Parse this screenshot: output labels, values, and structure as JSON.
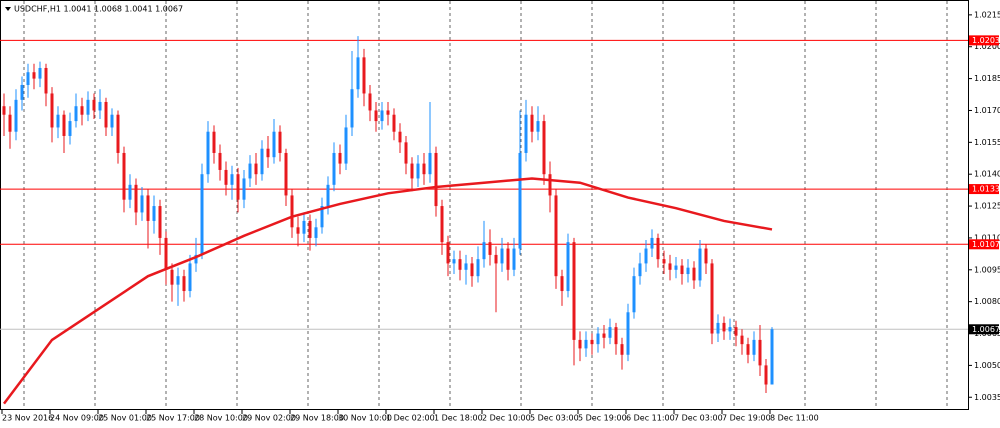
{
  "chart_data": {
    "type": "candlestick",
    "title": "USDCHF,H1  1.0041 1.0068 1.0041 1.0067",
    "up_color": "#1e90ff",
    "down_color": "#e8191e",
    "ylim": [
      1.0029,
      1.0222
    ],
    "yticks": [
      1.0035,
      {
        "value": 1.005,
        "label": "1.0050"
      },
      1.0065,
      {
        "value": 1.008,
        "label": "1.0080"
      },
      1.0095,
      {
        "value": 1.011,
        "label": "1.0110"
      },
      1.0125,
      {
        "value": 1.014,
        "label": "1.0140"
      },
      1.0155,
      {
        "value": 1.017,
        "label": "1.0170"
      },
      1.0185,
      {
        "value": 1.02,
        "label": "1.0200"
      },
      1.0215
    ],
    "categories": [
      "23 Nov 2016",
      null,
      null,
      null,
      null,
      null,
      null,
      null,
      "24 Nov 09:00",
      null,
      null,
      null,
      null,
      null,
      null,
      null,
      "25 Nov 01:00",
      null,
      null,
      null,
      null,
      null,
      null,
      null,
      "25 Nov 17:00",
      null,
      null,
      null,
      null,
      null,
      null,
      null,
      "28 Nov 10:00",
      null,
      null,
      null,
      null,
      null,
      null,
      null,
      "29 Nov 02:00",
      null,
      null,
      null,
      null,
      null,
      null,
      null,
      "29 Nov 18:00",
      null,
      null,
      null,
      null,
      null,
      null,
      null,
      "30 Nov 10:00",
      null,
      null,
      null,
      null,
      null,
      null,
      null,
      "1 Dec 02:00",
      null,
      null,
      null,
      null,
      null,
      null,
      null,
      "1 Dec 18:00",
      null,
      null,
      null,
      null,
      null,
      null,
      null,
      "2 Dec 10:00",
      null,
      null,
      null,
      null,
      null,
      null,
      null,
      "5 Dec 03:00",
      null,
      null,
      null,
      null,
      null,
      null,
      null,
      "5 Dec 19:00",
      null,
      null,
      null,
      null,
      null,
      null,
      null,
      "6 Dec 11:00",
      null,
      null,
      null,
      null,
      null,
      null,
      null,
      "7 Dec 03:00",
      null,
      null,
      null,
      null,
      null,
      null,
      null,
      "7 Dec 19:00",
      null,
      null,
      null,
      null,
      null,
      null,
      null,
      "8 Dec 11:00"
    ],
    "ohlc": [
      [
        1.0172,
        1.0178,
        1.0158,
        1.0168
      ],
      [
        1.0168,
        1.0172,
        1.0152,
        1.016
      ],
      [
        1.016,
        1.018,
        1.0156,
        1.0175
      ],
      [
        1.0175,
        1.0186,
        1.017,
        1.0182
      ],
      [
        1.0182,
        1.0192,
        1.0176,
        1.0188
      ],
      [
        1.0188,
        1.0192,
        1.018,
        1.0185
      ],
      [
        1.0185,
        1.0193,
        1.0181,
        1.019
      ],
      [
        1.019,
        1.0192,
        1.0172,
        1.0178
      ],
      [
        1.0178,
        1.0181,
        1.0155,
        1.0162
      ],
      [
        1.0162,
        1.0172,
        1.0157,
        1.0168
      ],
      [
        1.0168,
        1.017,
        1.015,
        1.0158
      ],
      [
        1.0158,
        1.0169,
        1.0154,
        1.0165
      ],
      [
        1.0165,
        1.0178,
        1.0162,
        1.0172
      ],
      [
        1.0172,
        1.0176,
        1.0163,
        1.0168
      ],
      [
        1.0168,
        1.0179,
        1.0165,
        1.0175
      ],
      [
        1.0175,
        1.0178,
        1.0166,
        1.017
      ],
      [
        1.017,
        1.018,
        1.0166,
        1.0174
      ],
      [
        1.0174,
        1.0176,
        1.0158,
        1.0162
      ],
      [
        1.0162,
        1.0171,
        1.0158,
        1.0168
      ],
      [
        1.0168,
        1.017,
        1.0145,
        1.015
      ],
      [
        1.015,
        1.0153,
        1.0122,
        1.0128
      ],
      [
        1.0128,
        1.014,
        1.0124,
        1.0135
      ],
      [
        1.0135,
        1.0138,
        1.0116,
        1.0122
      ],
      [
        1.0122,
        1.0134,
        1.0118,
        1.013
      ],
      [
        1.013,
        1.0133,
        1.0105,
        1.0118
      ],
      [
        1.0118,
        1.013,
        1.0112,
        1.0125
      ],
      [
        1.0125,
        1.0128,
        1.0102,
        1.011
      ],
      [
        1.011,
        1.0113,
        1.0088,
        1.0095
      ],
      [
        1.0095,
        1.0098,
        1.008,
        1.0088
      ],
      [
        1.0088,
        1.0096,
        1.0078,
        1.0092
      ],
      [
        1.0092,
        1.0095,
        1.008,
        1.0085
      ],
      [
        1.0085,
        1.0102,
        1.0082,
        1.0098
      ],
      [
        1.0098,
        1.011,
        1.0094,
        1.0102
      ],
      [
        1.0102,
        1.0145,
        1.01,
        1.014
      ],
      [
        1.014,
        1.0165,
        1.0136,
        1.016
      ],
      [
        1.016,
        1.0163,
        1.0145,
        1.015
      ],
      [
        1.015,
        1.0154,
        1.0137,
        1.0142
      ],
      [
        1.0142,
        1.0146,
        1.013,
        1.0135
      ],
      [
        1.0135,
        1.0144,
        1.0128,
        1.014
      ],
      [
        1.014,
        1.0143,
        1.0122,
        1.0128
      ],
      [
        1.0128,
        1.0142,
        1.0124,
        1.0138
      ],
      [
        1.0138,
        1.0149,
        1.0134,
        1.0145
      ],
      [
        1.0145,
        1.015,
        1.0135,
        1.014
      ],
      [
        1.014,
        1.0156,
        1.0137,
        1.0152
      ],
      [
        1.0152,
        1.0158,
        1.0143,
        1.0148
      ],
      [
        1.0148,
        1.0166,
        1.0145,
        1.016
      ],
      [
        1.016,
        1.0163,
        1.0146,
        1.015
      ],
      [
        1.015,
        1.0152,
        1.0125,
        1.013
      ],
      [
        1.013,
        1.0133,
        1.011,
        1.0115
      ],
      [
        1.0115,
        1.012,
        1.0106,
        1.0112
      ],
      [
        1.0112,
        1.0122,
        1.0108,
        1.0118
      ],
      [
        1.0118,
        1.0121,
        1.0104,
        1.011
      ],
      [
        1.011,
        1.0119,
        1.0106,
        1.0115
      ],
      [
        1.0115,
        1.0129,
        1.0112,
        1.0125
      ],
      [
        1.0125,
        1.0139,
        1.0121,
        1.0135
      ],
      [
        1.0135,
        1.0155,
        1.0132,
        1.015
      ],
      [
        1.015,
        1.0154,
        1.014,
        1.0145
      ],
      [
        1.0145,
        1.0168,
        1.0142,
        1.0162
      ],
      [
        1.0162,
        1.0198,
        1.0158,
        1.018
      ],
      [
        1.018,
        1.0205,
        1.0176,
        1.0195
      ],
      [
        1.0195,
        1.0199,
        1.0172,
        1.0178
      ],
      [
        1.0178,
        1.0182,
        1.0165,
        1.017
      ],
      [
        1.017,
        1.0174,
        1.016,
        1.0165
      ],
      [
        1.0165,
        1.0174,
        1.0161,
        1.017
      ],
      [
        1.017,
        1.0174,
        1.0163,
        1.0168
      ],
      [
        1.0168,
        1.0171,
        1.0156,
        1.016
      ],
      [
        1.016,
        1.0164,
        1.015,
        1.0155
      ],
      [
        1.0155,
        1.0158,
        1.014,
        1.0145
      ],
      [
        1.0145,
        1.0148,
        1.0132,
        1.0138
      ],
      [
        1.0138,
        1.0149,
        1.0134,
        1.0145
      ],
      [
        1.0145,
        1.015,
        1.0135,
        1.014
      ],
      [
        1.014,
        1.0174,
        1.0136,
        1.015
      ],
      [
        1.015,
        1.0153,
        1.012,
        1.0125
      ],
      [
        1.0125,
        1.0128,
        1.0102,
        1.0108
      ],
      [
        1.0108,
        1.0111,
        1.0092,
        1.0098
      ],
      [
        1.0098,
        1.0104,
        1.0093,
        1.01
      ],
      [
        1.01,
        1.0104,
        1.009,
        1.0095
      ],
      [
        1.0095,
        1.0102,
        1.0088,
        1.0098
      ],
      [
        1.0098,
        1.0101,
        1.0087,
        1.0092
      ],
      [
        1.0092,
        1.0106,
        1.0089,
        1.01
      ],
      [
        1.01,
        1.0118,
        1.0096,
        1.0108
      ],
      [
        1.0108,
        1.0114,
        1.0097,
        1.0102
      ],
      [
        1.0102,
        1.0106,
        1.0075,
        1.0098
      ],
      [
        1.0098,
        1.011,
        1.0094,
        1.0105
      ],
      [
        1.0105,
        1.0108,
        1.009,
        1.0095
      ],
      [
        1.0095,
        1.011,
        1.0092,
        1.0105
      ],
      [
        1.0105,
        1.017,
        1.0102,
        1.015
      ],
      [
        1.015,
        1.0175,
        1.0146,
        1.0168
      ],
      [
        1.0168,
        1.0172,
        1.0155,
        1.016
      ],
      [
        1.016,
        1.0172,
        1.0156,
        1.0165
      ],
      [
        1.0165,
        1.0168,
        1.0135,
        1.014
      ],
      [
        1.014,
        1.0146,
        1.0122,
        1.013
      ],
      [
        1.013,
        1.0133,
        1.0086,
        1.0092
      ],
      [
        1.0092,
        1.0095,
        1.0078,
        1.0085
      ],
      [
        1.0085,
        1.0112,
        1.0082,
        1.0108
      ],
      [
        1.0108,
        1.011,
        1.005,
        1.0062
      ],
      [
        1.0062,
        1.0066,
        1.0052,
        1.0058
      ],
      [
        1.0058,
        1.0066,
        1.0054,
        1.0062
      ],
      [
        1.0062,
        1.0065,
        1.0055,
        1.006
      ],
      [
        1.006,
        1.0068,
        1.0056,
        1.0065
      ],
      [
        1.0065,
        1.0069,
        1.0058,
        1.0063
      ],
      [
        1.0063,
        1.0072,
        1.006,
        1.0068
      ],
      [
        1.0068,
        1.007,
        1.0055,
        1.006
      ],
      [
        1.006,
        1.0063,
        1.0048,
        1.0055
      ],
      [
        1.0055,
        1.0079,
        1.0052,
        1.0075
      ],
      [
        1.0075,
        1.0096,
        1.0072,
        1.0092
      ],
      [
        1.0092,
        1.0103,
        1.0088,
        1.0098
      ],
      [
        1.0098,
        1.0109,
        1.0094,
        1.0105
      ],
      [
        1.0105,
        1.0114,
        1.0101,
        1.011
      ],
      [
        1.011,
        1.0112,
        1.0096,
        1.01
      ],
      [
        1.01,
        1.0104,
        1.0093,
        1.0098
      ],
      [
        1.0098,
        1.0102,
        1.009,
        1.0095
      ],
      [
        1.0095,
        1.0101,
        1.0091,
        1.0097
      ],
      [
        1.0097,
        1.01,
        1.0088,
        1.0093
      ],
      [
        1.0093,
        1.01,
        1.0089,
        1.0096
      ],
      [
        1.0096,
        1.0099,
        1.0086,
        1.009
      ],
      [
        1.009,
        1.0109,
        1.0087,
        1.0105
      ],
      [
        1.0105,
        1.0107,
        1.0093,
        1.0098
      ],
      [
        1.0098,
        1.01,
        1.006,
        1.0065
      ],
      [
        1.0065,
        1.0074,
        1.0061,
        1.007
      ],
      [
        1.007,
        1.0073,
        1.0062,
        1.0066
      ],
      [
        1.0066,
        1.0072,
        1.0062,
        1.0068
      ],
      [
        1.0068,
        1.0071,
        1.0059,
        1.0064
      ],
      [
        1.0064,
        1.0067,
        1.0055,
        1.006
      ],
      [
        1.006,
        1.0063,
        1.0051,
        1.0055
      ],
      [
        1.0055,
        1.0066,
        1.0052,
        1.0062
      ],
      [
        1.0062,
        1.0069,
        1.0045,
        1.005
      ],
      [
        1.005,
        1.0053,
        1.0037,
        1.0041
      ],
      [
        1.0041,
        1.0068,
        1.0041,
        1.0067
      ]
    ],
    "ma": {
      "color": "#e8191e",
      "x": [
        0,
        8,
        16,
        24,
        32,
        40,
        48,
        56,
        64,
        72,
        80,
        88,
        96,
        104,
        112,
        120,
        128
      ],
      "values": [
        1.0032,
        1.0062,
        1.0077,
        1.0092,
        1.0101,
        1.0111,
        1.012,
        1.0126,
        1.0131,
        1.0134,
        1.0136,
        1.0138,
        1.0136,
        1.0129,
        1.0124,
        1.0118,
        1.0114
      ]
    },
    "levels": {
      "color": "#ff0000",
      "values": [
        1.0203,
        1.0133,
        1.0107
      ]
    },
    "bid_line": {
      "color": "#c0c0c0",
      "value": 1.0067
    }
  }
}
